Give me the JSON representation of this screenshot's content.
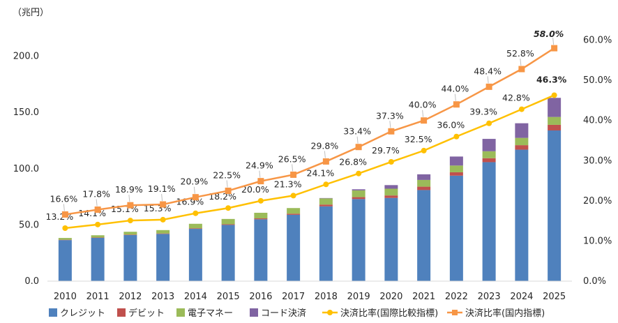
{
  "chart_data": {
    "type": "bar",
    "stacked": true,
    "y_unit_label": "（兆円）",
    "categories": [
      "2010",
      "2011",
      "2012",
      "2013",
      "2014",
      "2015",
      "2016",
      "2017",
      "2018",
      "2019",
      "2020",
      "2021",
      "2022",
      "2023",
      "2024",
      "2025"
    ],
    "ylim": [
      0,
      250
    ],
    "yticks": [
      "0.0",
      "50.0",
      "100.0",
      "150.0",
      "200.0"
    ],
    "y2lim": [
      0,
      70
    ],
    "y2ticks": [
      "0.0%",
      "10.0%",
      "20.0%",
      "30.0%",
      "40.0%",
      "50.0%",
      "60.0%"
    ],
    "grid": false,
    "legend_position": "bottom",
    "series": [
      {
        "name": "クレジット",
        "color": "#4f81bd",
        "type": "bar",
        "values": [
          36.5,
          38.5,
          41.0,
          42.0,
          46.5,
          50.0,
          55.0,
          59.0,
          66.5,
          73.0,
          74.0,
          81.0,
          93.8,
          105.8,
          116.9,
          134.0
        ]
      },
      {
        "name": "デビット",
        "color": "#c0504d",
        "type": "bar",
        "values": [
          0.3,
          0.3,
          0.4,
          0.4,
          0.5,
          0.6,
          0.8,
          1.0,
          1.6,
          1.7,
          2.2,
          3.0,
          3.0,
          3.5,
          4.0,
          5.0
        ]
      },
      {
        "name": "電子マネー",
        "color": "#9bbb59",
        "type": "bar",
        "values": [
          1.6,
          2.0,
          2.5,
          3.0,
          4.0,
          4.7,
          5.0,
          5.0,
          5.5,
          6.0,
          6.0,
          6.0,
          6.0,
          6.2,
          6.5,
          7.0
        ]
      },
      {
        "name": "コード決済",
        "color": "#8064a2",
        "type": "bar",
        "values": [
          0,
          0,
          0,
          0,
          0,
          0,
          0,
          0,
          0.3,
          1.0,
          3.2,
          5.0,
          8.0,
          11.0,
          13.0,
          17.0
        ]
      },
      {
        "name": "決済比率(国際比較指標)",
        "color": "#ffc000",
        "type": "line",
        "axis": "right",
        "values": [
          13.2,
          14.1,
          15.1,
          15.3,
          16.9,
          18.2,
          20.0,
          21.3,
          24.1,
          26.8,
          29.7,
          32.5,
          36.0,
          39.3,
          42.8,
          46.3
        ],
        "labels": [
          "13.2%",
          "14.1%",
          "15.1%",
          "15.3%",
          "16.9%",
          "18.2%",
          "20.0%",
          "21.3%",
          "24.1%",
          "26.8%",
          "29.7%",
          "32.5%",
          "36.0%",
          "39.3%",
          "42.8%",
          "46.3%"
        ]
      },
      {
        "name": "決済比率(国内指標)",
        "color": "#f79646",
        "type": "line",
        "axis": "right",
        "values": [
          16.6,
          17.8,
          18.9,
          19.1,
          20.9,
          22.5,
          24.9,
          26.5,
          29.8,
          33.4,
          37.3,
          40.0,
          44.0,
          48.4,
          52.8,
          58.0
        ],
        "labels": [
          "16.6%",
          "17.8%",
          "18.9%",
          "19.1%",
          "20.9%",
          "22.5%",
          "24.9%",
          "26.5%",
          "29.8%",
          "33.4%",
          "37.3%",
          "40.0%",
          "44.0%",
          "48.4%",
          "52.8%",
          "58.0%"
        ]
      }
    ],
    "highlight_colors": {
      "last_orange_label": "#ff0000",
      "last_yellow_label": "#000000"
    }
  }
}
